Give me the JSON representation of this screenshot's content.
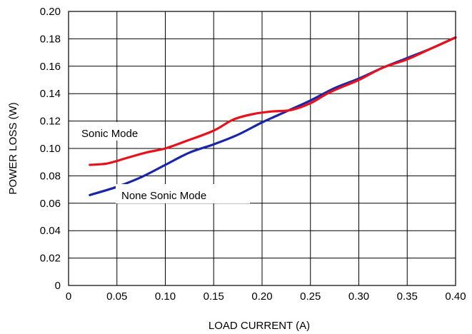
{
  "chart_data": {
    "type": "line",
    "title": "",
    "xlabel": "LOAD CURRENT (A)",
    "ylabel": "POWER LOSS (W)",
    "xlim": [
      0,
      0.4
    ],
    "ylim": [
      0,
      0.2
    ],
    "x_ticks": [
      0,
      0.05,
      0.1,
      0.15,
      0.2,
      0.25,
      0.3,
      0.35,
      0.4
    ],
    "x_tick_labels": [
      "0",
      "0.05",
      "0.10",
      "0.15",
      "0.20",
      "0.25",
      "0.30",
      "0.35",
      "0.40"
    ],
    "y_ticks": [
      0,
      0.02,
      0.04,
      0.06,
      0.08,
      0.1,
      0.12,
      0.14,
      0.16,
      0.18,
      0.2
    ],
    "y_tick_labels": [
      "0",
      "0.02",
      "0.04",
      "0.06",
      "0.08",
      "0.10",
      "0.12",
      "0.14",
      "0.16",
      "0.18",
      "0.20"
    ],
    "grid": true,
    "series": [
      {
        "name": "Sonic Mode",
        "color": "#e8101a",
        "x": [
          0.022,
          0.04,
          0.06,
          0.08,
          0.1,
          0.12,
          0.15,
          0.17,
          0.19,
          0.21,
          0.23,
          0.25,
          0.27,
          0.3,
          0.325,
          0.35,
          0.375,
          0.4
        ],
        "y": [
          0.088,
          0.089,
          0.093,
          0.097,
          0.1,
          0.105,
          0.113,
          0.121,
          0.125,
          0.127,
          0.128,
          0.133,
          0.141,
          0.15,
          0.159,
          0.165,
          0.173,
          0.181
        ]
      },
      {
        "name": "None Sonic Mode",
        "color": "#1a26a8",
        "x": [
          0.022,
          0.05,
          0.075,
          0.1,
          0.125,
          0.15,
          0.175,
          0.2,
          0.225,
          0.25,
          0.275,
          0.3,
          0.325,
          0.35,
          0.375,
          0.4
        ],
        "y": [
          0.066,
          0.072,
          0.079,
          0.088,
          0.097,
          0.103,
          0.11,
          0.119,
          0.127,
          0.135,
          0.144,
          0.151,
          0.159,
          0.166,
          0.173,
          0.181
        ]
      }
    ],
    "annotations": [
      "Sonic Mode",
      "None Sonic Mode"
    ]
  }
}
